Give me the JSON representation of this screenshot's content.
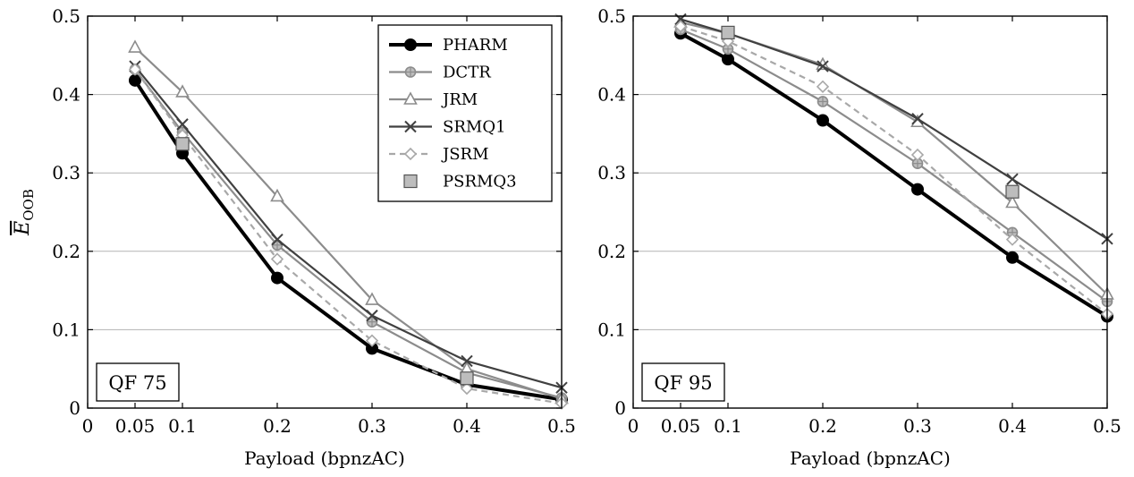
{
  "ylabel_main": "E",
  "ylabel_sub": "OOB",
  "series_styles": [
    {
      "name": "PHARM",
      "color": "#000000",
      "width": 4,
      "dash": "",
      "marker": "circle-filled",
      "mcolor": "#000000",
      "mfill": "#000000"
    },
    {
      "name": "DCTR",
      "color": "#8c8c8c",
      "width": 2.2,
      "dash": "",
      "marker": "circle-plus",
      "mcolor": "#8c8c8c",
      "mfill": "#bdbdbd"
    },
    {
      "name": "JRM",
      "color": "#8c8c8c",
      "width": 2.2,
      "dash": "",
      "marker": "triangle",
      "mcolor": "#8c8c8c",
      "mfill": "#ffffff"
    },
    {
      "name": "SRMQ1",
      "color": "#404040",
      "width": 2.2,
      "dash": "",
      "marker": "x",
      "mcolor": "#404040",
      "mfill": "none"
    },
    {
      "name": "JSRM",
      "color": "#a8a8a8",
      "width": 2.2,
      "dash": "7,5",
      "marker": "diamond",
      "mcolor": "#a8a8a8",
      "mfill": "#ffffff"
    },
    {
      "name": "PSRMQ3",
      "color": "#555555",
      "width": 1.5,
      "dash": "",
      "marker": "square",
      "mcolor": "#555555",
      "mfill": "#bdbdbd"
    }
  ],
  "chart_data": [
    {
      "type": "line",
      "panel_label": "QF 75",
      "xlabel": "Payload (bpnzAC)",
      "xlim": [
        0,
        0.5
      ],
      "ylim": [
        0,
        0.5
      ],
      "xticks": [
        0,
        0.05,
        0.1,
        0.2,
        0.3,
        0.4,
        0.5
      ],
      "yticks": [
        0,
        0.1,
        0.2,
        0.3,
        0.4,
        0.5
      ],
      "legend": "top-right",
      "grid": "horizontal",
      "series": [
        {
          "name": "PHARM",
          "points": [
            [
              0.05,
              0.418
            ],
            [
              0.1,
              0.325
            ],
            [
              0.2,
              0.166
            ],
            [
              0.3,
              0.076
            ],
            [
              0.4,
              0.03
            ],
            [
              0.5,
              0.011
            ]
          ]
        },
        {
          "name": "DCTR",
          "points": [
            [
              0.05,
              0.432
            ],
            [
              0.1,
              0.352
            ],
            [
              0.2,
              0.208
            ],
            [
              0.3,
              0.11
            ],
            [
              0.4,
              0.045
            ],
            [
              0.5,
              0.013
            ]
          ]
        },
        {
          "name": "JRM",
          "points": [
            [
              0.05,
              0.46
            ],
            [
              0.1,
              0.403
            ],
            [
              0.2,
              0.27
            ],
            [
              0.3,
              0.138
            ],
            [
              0.4,
              0.05
            ],
            [
              0.5,
              0.012
            ]
          ]
        },
        {
          "name": "SRMQ1",
          "points": [
            [
              0.05,
              0.436
            ],
            [
              0.1,
              0.362
            ],
            [
              0.2,
              0.215
            ],
            [
              0.3,
              0.118
            ],
            [
              0.4,
              0.06
            ],
            [
              0.5,
              0.026
            ]
          ]
        },
        {
          "name": "JSRM",
          "points": [
            [
              0.05,
              0.432
            ],
            [
              0.1,
              0.348
            ],
            [
              0.2,
              0.19
            ],
            [
              0.3,
              0.086
            ],
            [
              0.4,
              0.025
            ],
            [
              0.5,
              0.006
            ]
          ]
        },
        {
          "name": "PSRMQ3",
          "points": [
            [
              0.1,
              0.337
            ],
            [
              0.4,
              0.038
            ]
          ]
        }
      ]
    },
    {
      "type": "line",
      "panel_label": "QF 95",
      "xlabel": "Payload (bpnzAC)",
      "xlim": [
        0,
        0.5
      ],
      "ylim": [
        0,
        0.5
      ],
      "xticks": [
        0,
        0.05,
        0.1,
        0.2,
        0.3,
        0.4,
        0.5
      ],
      "yticks": [
        0,
        0.1,
        0.2,
        0.3,
        0.4,
        0.5
      ],
      "legend": "",
      "grid": "horizontal",
      "series": [
        {
          "name": "PHARM",
          "points": [
            [
              0.05,
              0.478
            ],
            [
              0.1,
              0.445
            ],
            [
              0.2,
              0.367
            ],
            [
              0.3,
              0.279
            ],
            [
              0.4,
              0.192
            ],
            [
              0.5,
              0.117
            ]
          ]
        },
        {
          "name": "DCTR",
          "points": [
            [
              0.05,
              0.483
            ],
            [
              0.1,
              0.458
            ],
            [
              0.2,
              0.391
            ],
            [
              0.3,
              0.312
            ],
            [
              0.4,
              0.224
            ],
            [
              0.5,
              0.136
            ]
          ]
        },
        {
          "name": "JRM",
          "points": [
            [
              0.05,
              0.492
            ],
            [
              0.1,
              0.478
            ],
            [
              0.2,
              0.438
            ],
            [
              0.3,
              0.365
            ],
            [
              0.4,
              0.262
            ],
            [
              0.5,
              0.145
            ]
          ]
        },
        {
          "name": "SRMQ1",
          "points": [
            [
              0.05,
              0.496
            ],
            [
              0.1,
              0.478
            ],
            [
              0.2,
              0.436
            ],
            [
              0.3,
              0.369
            ],
            [
              0.4,
              0.292
            ],
            [
              0.5,
              0.216
            ]
          ]
        },
        {
          "name": "JSRM",
          "points": [
            [
              0.05,
              0.487
            ],
            [
              0.1,
              0.468
            ],
            [
              0.2,
              0.41
            ],
            [
              0.3,
              0.323
            ],
            [
              0.4,
              0.215
            ],
            [
              0.5,
              0.12
            ]
          ]
        },
        {
          "name": "PSRMQ3",
          "points": [
            [
              0.1,
              0.479
            ],
            [
              0.4,
              0.276
            ]
          ]
        }
      ]
    }
  ]
}
